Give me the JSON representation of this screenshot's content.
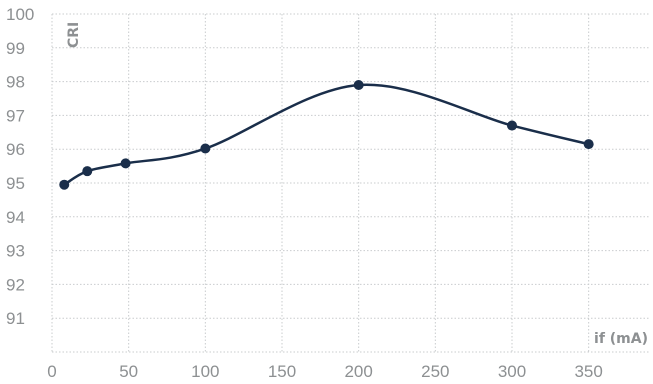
{
  "chart_data": {
    "type": "line",
    "xlabel": "if (mA)",
    "ylabel": "CRI",
    "xlim": [
      0,
      390
    ],
    "ylim": [
      90,
      100
    ],
    "x_ticks": [
      0,
      50,
      100,
      150,
      200,
      250,
      300,
      350
    ],
    "y_ticks": [
      91,
      92,
      93,
      94,
      95,
      96,
      97,
      98,
      99,
      100
    ],
    "grid": true,
    "smooth": true,
    "colors": {
      "line": "#1a2e4a",
      "grid": "#c9ccce",
      "text": "#8d9092"
    },
    "series": [
      {
        "x": [
          8,
          23,
          48,
          100,
          200,
          300,
          350
        ],
        "y": [
          94.95,
          95.35,
          95.58,
          96.02,
          97.9,
          96.7,
          96.15
        ]
      }
    ]
  }
}
